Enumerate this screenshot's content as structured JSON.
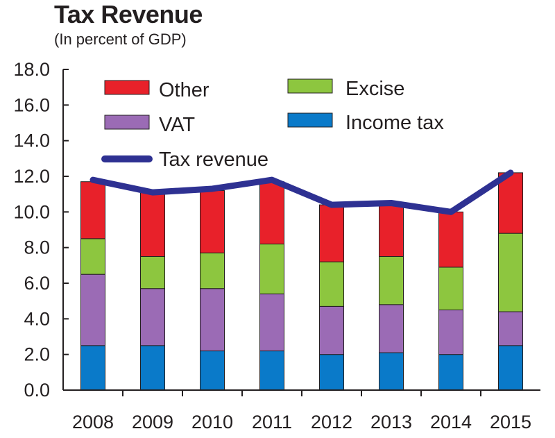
{
  "title": "Tax Revenue",
  "subtitle": "(In percent of GDP)",
  "chart_data": {
    "type": "bar",
    "stacked": true,
    "categories": [
      "2008",
      "2009",
      "2010",
      "2011",
      "2012",
      "2013",
      "2014",
      "2015"
    ],
    "ylim": [
      0,
      18
    ],
    "yticks": [
      "0.0",
      "2.0",
      "4.0",
      "6.0",
      "8.0",
      "10.0",
      "12.0",
      "14.0",
      "16.0",
      "18.0"
    ],
    "series": [
      {
        "name": "Income tax",
        "color": "#0a7ac9",
        "values": [
          2.5,
          2.5,
          2.2,
          2.2,
          2.0,
          2.1,
          2.0,
          2.5
        ]
      },
      {
        "name": "VAT",
        "color": "#9b6bb5",
        "values": [
          4.0,
          3.2,
          3.5,
          3.2,
          2.7,
          2.7,
          2.5,
          1.9
        ]
      },
      {
        "name": "Excise",
        "color": "#8dc63f",
        "values": [
          2.0,
          1.8,
          2.0,
          2.8,
          2.5,
          2.7,
          2.4,
          4.4
        ]
      },
      {
        "name": "Other",
        "color": "#e8212a",
        "values": [
          3.2,
          3.7,
          3.5,
          3.5,
          3.2,
          3.0,
          3.1,
          3.4
        ]
      }
    ],
    "line": {
      "name": "Tax revenue",
      "color": "#2e3192",
      "values": [
        11.8,
        11.1,
        11.3,
        11.8,
        10.4,
        10.5,
        10.0,
        12.2
      ]
    },
    "legend": [
      {
        "name": "Other",
        "color": "#e8212a",
        "kind": "box"
      },
      {
        "name": "Excise",
        "color": "#8dc63f",
        "kind": "box"
      },
      {
        "name": "VAT",
        "color": "#9b6bb5",
        "kind": "box"
      },
      {
        "name": "Income tax",
        "color": "#0a7ac9",
        "kind": "box"
      },
      {
        "name": "Tax revenue",
        "color": "#2e3192",
        "kind": "line"
      }
    ],
    "grid": false,
    "legend_position": "top-left"
  }
}
